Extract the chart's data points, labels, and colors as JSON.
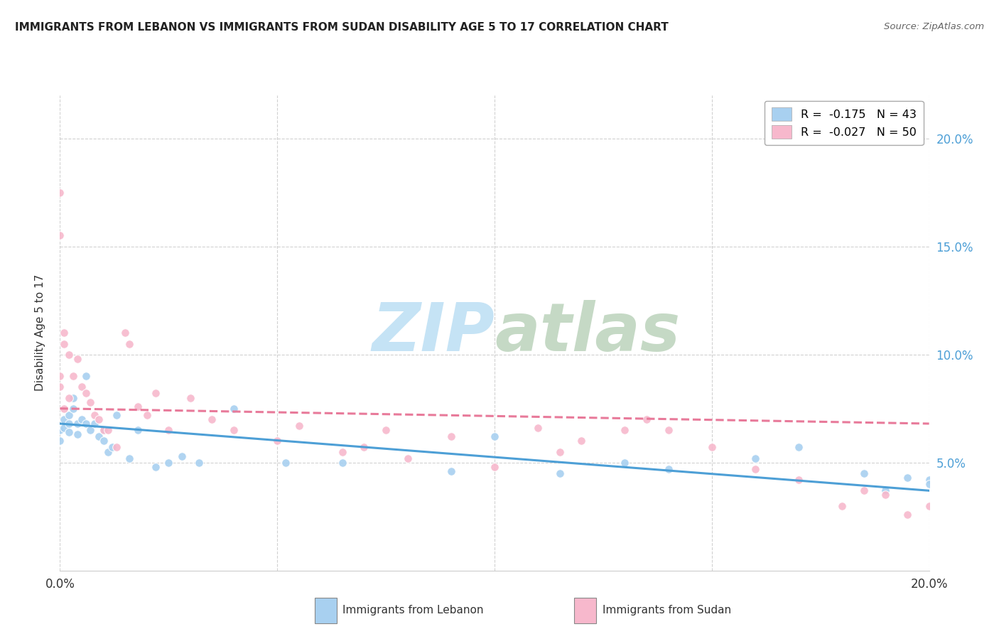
{
  "title": "IMMIGRANTS FROM LEBANON VS IMMIGRANTS FROM SUDAN DISABILITY AGE 5 TO 17 CORRELATION CHART",
  "source": "Source: ZipAtlas.com",
  "ylabel": "Disability Age 5 to 17",
  "xlim": [
    0.0,
    0.2
  ],
  "ylim": [
    0.0,
    0.22
  ],
  "yticks": [
    0.05,
    0.1,
    0.15,
    0.2
  ],
  "ytick_labels": [
    "5.0%",
    "10.0%",
    "15.0%",
    "20.0%"
  ],
  "xticks": [
    0.0,
    0.05,
    0.1,
    0.15,
    0.2
  ],
  "xtick_labels": [
    "0.0%",
    "",
    "",
    "",
    "20.0%"
  ],
  "legend_entries": [
    {
      "label": "R =  -0.175   N = 43",
      "color": "#a8d0f0"
    },
    {
      "label": "R =  -0.027   N = 50",
      "color": "#f7b8cc"
    }
  ],
  "lebanon_color": "#a8d0f0",
  "sudan_color": "#f7b8cc",
  "lebanon_line_color": "#4d9fd6",
  "sudan_line_color": "#e87a9a",
  "watermark_zip": "ZIP",
  "watermark_atlas": "atlas",
  "watermark_color": "#c5e3f5",
  "watermark_atlas_color": "#c5d9c5",
  "lebanon_scatter_x": [
    0.0,
    0.0,
    0.001,
    0.001,
    0.002,
    0.002,
    0.002,
    0.003,
    0.003,
    0.004,
    0.004,
    0.005,
    0.006,
    0.006,
    0.007,
    0.008,
    0.009,
    0.01,
    0.01,
    0.011,
    0.012,
    0.013,
    0.016,
    0.018,
    0.022,
    0.025,
    0.028,
    0.032,
    0.04,
    0.052,
    0.065,
    0.09,
    0.1,
    0.115,
    0.13,
    0.14,
    0.16,
    0.17,
    0.185,
    0.19,
    0.195,
    0.2,
    0.2
  ],
  "lebanon_scatter_y": [
    0.065,
    0.06,
    0.07,
    0.066,
    0.072,
    0.068,
    0.064,
    0.08,
    0.075,
    0.068,
    0.063,
    0.07,
    0.09,
    0.068,
    0.065,
    0.068,
    0.062,
    0.065,
    0.06,
    0.055,
    0.057,
    0.072,
    0.052,
    0.065,
    0.048,
    0.05,
    0.053,
    0.05,
    0.075,
    0.05,
    0.05,
    0.046,
    0.062,
    0.045,
    0.05,
    0.047,
    0.052,
    0.057,
    0.045,
    0.037,
    0.043,
    0.042,
    0.04
  ],
  "sudan_scatter_x": [
    0.0,
    0.0,
    0.0,
    0.0,
    0.001,
    0.001,
    0.001,
    0.002,
    0.002,
    0.003,
    0.004,
    0.005,
    0.006,
    0.007,
    0.008,
    0.009,
    0.01,
    0.011,
    0.013,
    0.015,
    0.016,
    0.018,
    0.02,
    0.022,
    0.025,
    0.03,
    0.035,
    0.04,
    0.05,
    0.055,
    0.065,
    0.07,
    0.075,
    0.08,
    0.09,
    0.1,
    0.11,
    0.115,
    0.12,
    0.13,
    0.135,
    0.14,
    0.15,
    0.16,
    0.17,
    0.18,
    0.185,
    0.19,
    0.195,
    0.2
  ],
  "sudan_scatter_y": [
    0.175,
    0.155,
    0.09,
    0.085,
    0.11,
    0.105,
    0.075,
    0.1,
    0.08,
    0.09,
    0.098,
    0.085,
    0.082,
    0.078,
    0.072,
    0.07,
    0.065,
    0.065,
    0.057,
    0.11,
    0.105,
    0.076,
    0.072,
    0.082,
    0.065,
    0.08,
    0.07,
    0.065,
    0.06,
    0.067,
    0.055,
    0.057,
    0.065,
    0.052,
    0.062,
    0.048,
    0.066,
    0.055,
    0.06,
    0.065,
    0.07,
    0.065,
    0.057,
    0.047,
    0.042,
    0.03,
    0.037,
    0.035,
    0.026,
    0.03
  ],
  "lebanon_trend_x": [
    0.0,
    0.2
  ],
  "lebanon_trend_y": [
    0.068,
    0.037
  ],
  "sudan_trend_x": [
    0.0,
    0.2
  ],
  "sudan_trend_y": [
    0.075,
    0.068
  ]
}
